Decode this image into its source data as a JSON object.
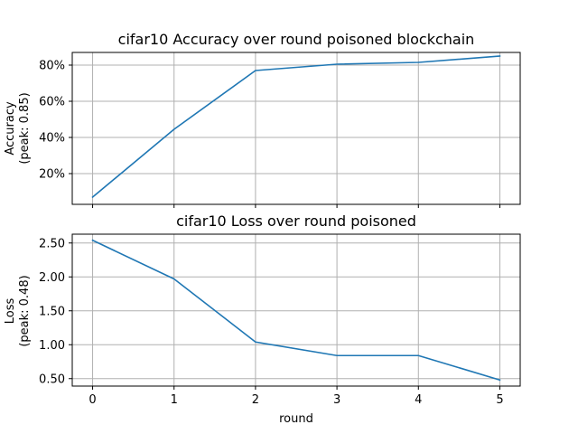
{
  "chart_data": [
    {
      "type": "line",
      "title": "cifar10 Accuracy over round poisoned blockchain",
      "ylabel_lines": [
        "Accuracy",
        "(peak: 0.85)"
      ],
      "xlabel": "",
      "x": [
        0,
        1,
        2,
        3,
        4,
        5
      ],
      "values": [
        0.07,
        0.445,
        0.77,
        0.805,
        0.815,
        0.85
      ],
      "xlim": [
        -0.25,
        5.25
      ],
      "ylim": [
        0.03,
        0.87
      ],
      "yticks": [
        0.2,
        0.4,
        0.6,
        0.8
      ],
      "ytick_labels": [
        "20%",
        "40%",
        "60%",
        "80%"
      ],
      "xtick_labels_visible": false,
      "grid": true,
      "color": "#1f77b4"
    },
    {
      "type": "line",
      "title": "cifar10 Loss over round poisoned",
      "ylabel_lines": [
        "Loss",
        "(peak: 0.48)"
      ],
      "xlabel": "round",
      "x": [
        0,
        1,
        2,
        3,
        4,
        5
      ],
      "values": [
        2.54,
        1.97,
        1.04,
        0.84,
        0.84,
        0.48
      ],
      "xlim": [
        -0.25,
        5.25
      ],
      "ylim": [
        0.39,
        2.63
      ],
      "yticks": [
        0.5,
        1.0,
        1.5,
        2.0,
        2.5
      ],
      "ytick_labels": [
        "0.50",
        "1.00",
        "1.50",
        "2.00",
        "2.50"
      ],
      "xtick_labels": [
        "0",
        "1",
        "2",
        "3",
        "4",
        "5"
      ],
      "xtick_labels_visible": true,
      "grid": true,
      "color": "#1f77b4"
    }
  ]
}
